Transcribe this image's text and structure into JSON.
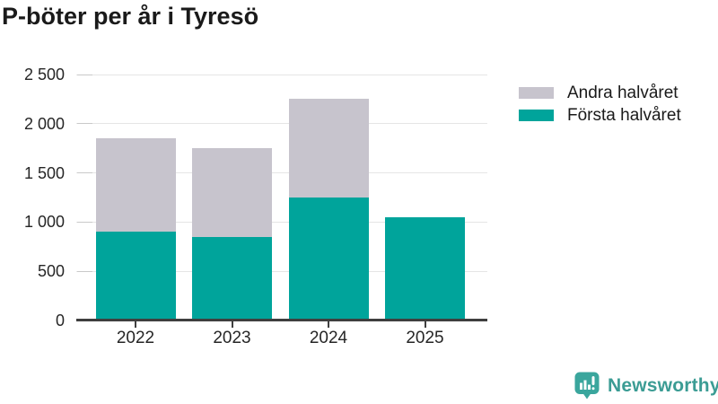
{
  "title": "P-böter per år i Tyresö",
  "legend": {
    "items": [
      {
        "label": "Andra halvåret",
        "color": "#c7c4cd"
      },
      {
        "label": "Första halvåret",
        "color": "#00a49b"
      }
    ]
  },
  "chart_data": {
    "type": "bar",
    "stacked": true,
    "title": "P-böter per år i Tyresö",
    "categories": [
      "2022",
      "2023",
      "2024",
      "2025"
    ],
    "series": [
      {
        "name": "Första halvåret",
        "color": "#00a49b",
        "values": [
          900,
          850,
          1250,
          1050
        ]
      },
      {
        "name": "Andra halvåret",
        "color": "#c7c4cd",
        "values": [
          950,
          900,
          1000,
          0
        ]
      }
    ],
    "totals": [
      1850,
      1750,
      2250,
      1050
    ],
    "xlabel": "",
    "ylabel": "",
    "ylim": [
      0,
      2500
    ],
    "yticks": [
      {
        "value": 0,
        "label": "0"
      },
      {
        "value": 500,
        "label": "500"
      },
      {
        "value": 1000,
        "label": "1 000"
      },
      {
        "value": 1500,
        "label": "1 500"
      },
      {
        "value": 2000,
        "label": "2 000"
      },
      {
        "value": 2500,
        "label": "2 500"
      }
    ],
    "grid": true,
    "legend_position": "top-right"
  },
  "branding": {
    "logo_text": "Newsworthy",
    "logo_icon": "newsworthy-bubble-barchart-icon",
    "brand_color": "#3b9c94"
  },
  "colors": {
    "first_half": "#00a49b",
    "second_half": "#c7c4cd",
    "axis": "#3f3f3f",
    "gridline": "#e5e5e5",
    "text": "#1a1a1a"
  }
}
